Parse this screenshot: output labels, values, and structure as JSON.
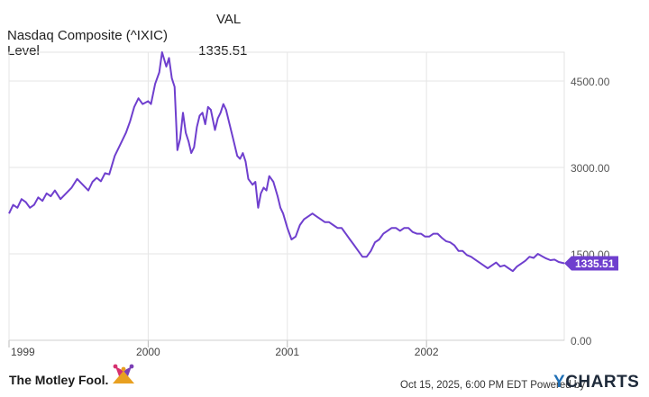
{
  "legend": {
    "column_header": "VAL",
    "series_name": "Nasdaq Composite (^IXIC) Level",
    "series_value": "1335.51"
  },
  "chart_data": {
    "type": "line",
    "title": "",
    "xlabel": "",
    "ylabel": "",
    "ylim": [
      0,
      5000
    ],
    "y_ticks": [
      0,
      1500,
      3000,
      4500
    ],
    "y_tick_labels": [
      "0.00",
      "1500.00",
      "3000.00",
      "4500.00"
    ],
    "x_ticks": [
      1999,
      2000,
      2001,
      2002
    ],
    "x_tick_labels": [
      "1999",
      "2000",
      "2001",
      "2002"
    ],
    "xlim": [
      1999.0,
      2002.99
    ],
    "grid": true,
    "last_value_label": "1335.51",
    "series": [
      {
        "name": "Nasdaq Composite (^IXIC) Level",
        "color": "#6f3fce",
        "x": [
          1999.0,
          1999.03,
          1999.06,
          1999.09,
          1999.12,
          1999.15,
          1999.18,
          1999.21,
          1999.24,
          1999.27,
          1999.3,
          1999.33,
          1999.37,
          1999.41,
          1999.45,
          1999.49,
          1999.53,
          1999.57,
          1999.6,
          1999.63,
          1999.66,
          1999.69,
          1999.72,
          1999.76,
          1999.8,
          1999.84,
          1999.87,
          1999.9,
          1999.93,
          1999.96,
          2000.0,
          2000.02,
          2000.05,
          2000.08,
          2000.1,
          2000.13,
          2000.15,
          2000.17,
          2000.19,
          2000.21,
          2000.23,
          2000.25,
          2000.27,
          2000.29,
          2000.31,
          2000.33,
          2000.35,
          2000.37,
          2000.39,
          2000.41,
          2000.43,
          2000.45,
          2000.48,
          2000.5,
          2000.52,
          2000.54,
          2000.56,
          2000.58,
          2000.61,
          2000.64,
          2000.66,
          2000.68,
          2000.7,
          2000.72,
          2000.75,
          2000.77,
          2000.79,
          2000.81,
          2000.83,
          2000.85,
          2000.87,
          2000.9,
          2000.93,
          2000.95,
          2000.97,
          2001.0,
          2001.03,
          2001.06,
          2001.09,
          2001.12,
          2001.15,
          2001.18,
          2001.21,
          2001.24,
          2001.27,
          2001.3,
          2001.33,
          2001.36,
          2001.39,
          2001.42,
          2001.45,
          2001.48,
          2001.51,
          2001.54,
          2001.57,
          2001.6,
          2001.63,
          2001.66,
          2001.69,
          2001.72,
          2001.75,
          2001.78,
          2001.81,
          2001.84,
          2001.87,
          2001.9,
          2001.93,
          2001.96,
          2001.99,
          2002.02,
          2002.05,
          2002.08,
          2002.11,
          2002.14,
          2002.17,
          2002.2,
          2002.23,
          2002.26,
          2002.29,
          2002.32,
          2002.35,
          2002.38,
          2002.41,
          2002.44,
          2002.47,
          2002.5,
          2002.53,
          2002.56,
          2002.59,
          2002.62,
          2002.65,
          2002.68,
          2002.71,
          2002.74,
          2002.77,
          2002.8,
          2002.83,
          2002.86,
          2002.89,
          2002.92,
          2002.95,
          2002.99
        ],
        "values": [
          2200,
          2350,
          2300,
          2450,
          2400,
          2300,
          2350,
          2480,
          2420,
          2550,
          2500,
          2600,
          2450,
          2550,
          2650,
          2800,
          2700,
          2600,
          2750,
          2820,
          2760,
          2900,
          2880,
          3200,
          3400,
          3600,
          3800,
          4050,
          4200,
          4100,
          4150,
          4100,
          4450,
          4650,
          5000,
          4750,
          4900,
          4550,
          4400,
          3300,
          3500,
          3950,
          3600,
          3450,
          3250,
          3350,
          3700,
          3900,
          3950,
          3750,
          4050,
          4000,
          3650,
          3850,
          3950,
          4100,
          4000,
          3800,
          3500,
          3200,
          3150,
          3250,
          3100,
          2800,
          2700,
          2750,
          2300,
          2550,
          2650,
          2600,
          2850,
          2750,
          2500,
          2300,
          2200,
          1950,
          1750,
          1800,
          2000,
          2100,
          2150,
          2200,
          2150,
          2100,
          2050,
          2050,
          2000,
          1950,
          1950,
          1850,
          1750,
          1650,
          1550,
          1450,
          1450,
          1550,
          1700,
          1750,
          1850,
          1900,
          1950,
          1950,
          1900,
          1950,
          1950,
          1880,
          1850,
          1850,
          1800,
          1800,
          1850,
          1850,
          1780,
          1720,
          1700,
          1650,
          1550,
          1550,
          1480,
          1450,
          1400,
          1350,
          1300,
          1250,
          1300,
          1350,
          1280,
          1300,
          1250,
          1200,
          1280,
          1330,
          1380,
          1450,
          1430,
          1500,
          1460,
          1420,
          1390,
          1400,
          1360,
          1335.51
        ]
      }
    ]
  },
  "footer": {
    "brand_left": "The Motley Fool.",
    "timestamp": "Oct 15, 2025, 6:00 PM EDT  Powered by",
    "brand_right_y": "Y",
    "brand_right_rest": "CHARTS"
  }
}
